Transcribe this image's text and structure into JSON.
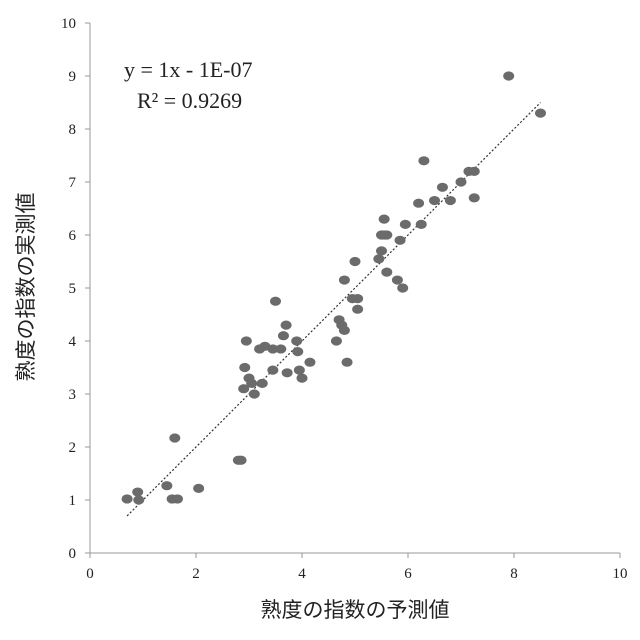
{
  "chart_data": {
    "type": "scatter",
    "title": "",
    "xlabel": "熟度の指数の予測値",
    "ylabel": "熟度の指数の実測値",
    "xlim": [
      0,
      10
    ],
    "ylim": [
      0,
      10
    ],
    "x_ticks": [
      "0",
      "2",
      "4",
      "6",
      "8",
      "10"
    ],
    "y_ticks": [
      "0",
      "1",
      "2",
      "3",
      "4",
      "5",
      "6",
      "7",
      "8",
      "9",
      "10"
    ],
    "grid": false,
    "trendline": {
      "type": "linear",
      "slope": 1,
      "intercept": 0,
      "x_range": [
        0.7,
        8.5
      ]
    },
    "equation": "y = 1x - 1E-07",
    "r_squared": "R² = 0.9269",
    "points": [
      [
        0.7,
        1.02
      ],
      [
        0.9,
        1.15
      ],
      [
        0.92,
        1.0
      ],
      [
        1.45,
        1.27
      ],
      [
        1.55,
        1.02
      ],
      [
        1.65,
        1.02
      ],
      [
        1.6,
        2.17
      ],
      [
        2.05,
        1.22
      ],
      [
        2.8,
        1.75
      ],
      [
        2.85,
        1.75
      ],
      [
        2.9,
        3.1
      ],
      [
        2.92,
        3.5
      ],
      [
        2.95,
        4.0
      ],
      [
        3.0,
        3.3
      ],
      [
        3.05,
        3.2
      ],
      [
        3.1,
        3.0
      ],
      [
        3.2,
        3.85
      ],
      [
        3.25,
        3.2
      ],
      [
        3.3,
        3.9
      ],
      [
        3.45,
        3.45
      ],
      [
        3.45,
        3.85
      ],
      [
        3.5,
        4.75
      ],
      [
        3.6,
        3.85
      ],
      [
        3.65,
        4.1
      ],
      [
        3.7,
        4.3
      ],
      [
        3.72,
        3.4
      ],
      [
        3.9,
        4.0
      ],
      [
        3.92,
        3.8
      ],
      [
        3.95,
        3.45
      ],
      [
        4.0,
        3.3
      ],
      [
        4.15,
        3.6
      ],
      [
        4.65,
        4.0
      ],
      [
        4.7,
        4.4
      ],
      [
        4.75,
        4.3
      ],
      [
        4.8,
        4.2
      ],
      [
        4.8,
        5.15
      ],
      [
        4.85,
        3.6
      ],
      [
        4.95,
        4.8
      ],
      [
        5.0,
        5.5
      ],
      [
        5.05,
        4.8
      ],
      [
        5.05,
        4.6
      ],
      [
        5.45,
        5.55
      ],
      [
        5.5,
        5.7
      ],
      [
        5.5,
        6.0
      ],
      [
        5.55,
        6.0
      ],
      [
        5.55,
        6.3
      ],
      [
        5.6,
        5.3
      ],
      [
        5.6,
        6.0
      ],
      [
        5.8,
        5.15
      ],
      [
        5.85,
        5.9
      ],
      [
        5.9,
        5.0
      ],
      [
        5.95,
        6.2
      ],
      [
        6.2,
        6.6
      ],
      [
        6.25,
        6.2
      ],
      [
        6.3,
        7.4
      ],
      [
        6.5,
        6.65
      ],
      [
        6.65,
        6.9
      ],
      [
        6.8,
        6.65
      ],
      [
        7.0,
        7.0
      ],
      [
        7.15,
        7.2
      ],
      [
        7.25,
        7.2
      ],
      [
        7.25,
        6.7
      ],
      [
        7.9,
        9.0
      ],
      [
        8.5,
        8.3
      ]
    ]
  }
}
